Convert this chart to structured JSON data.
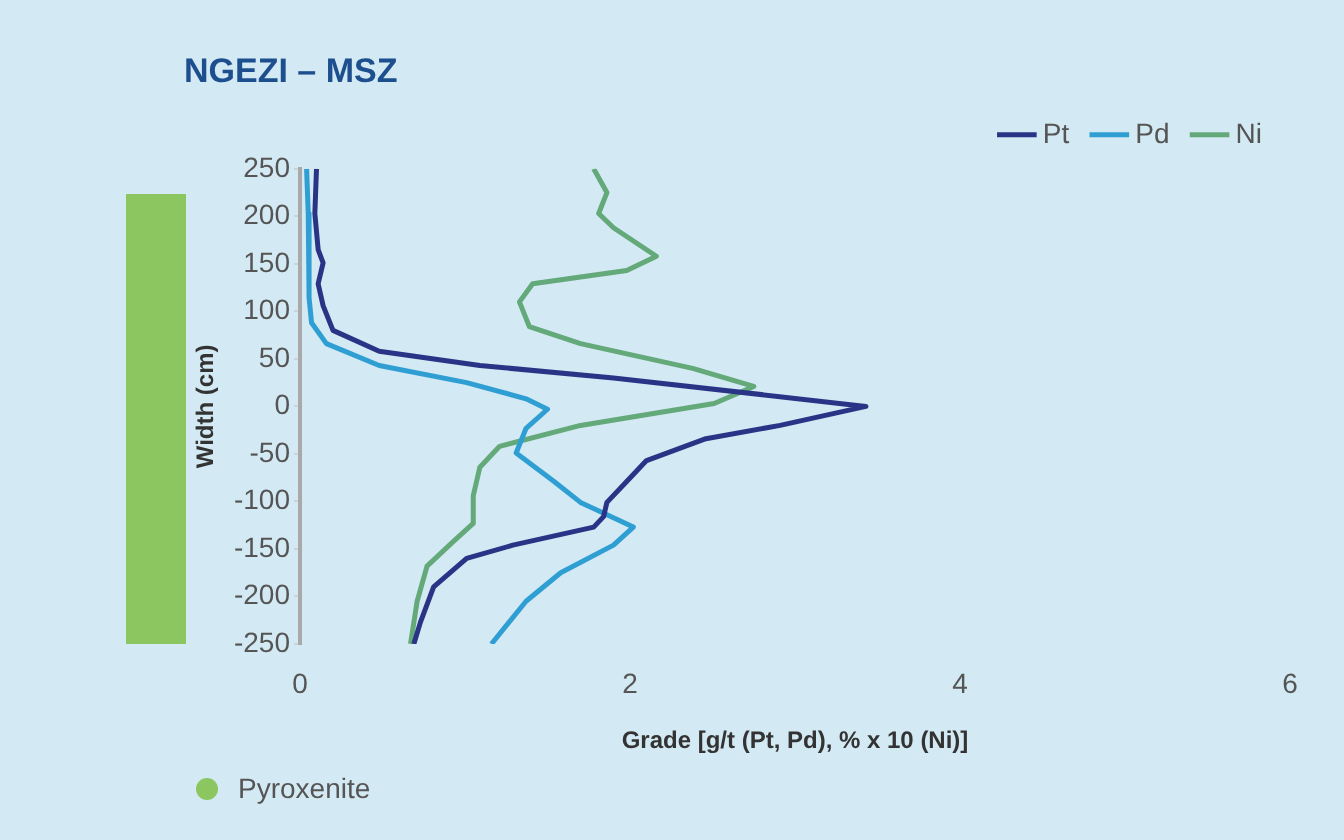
{
  "chart_data": {
    "type": "line",
    "title": "NGEZI – MSZ",
    "xlabel": "Grade [g/t (Pt, Pd), % x 10 (Ni)]",
    "ylabel": "Width (cm)",
    "xlim": [
      0,
      6
    ],
    "xticks": [
      0,
      2,
      4,
      6
    ],
    "ylim": [
      -250,
      250
    ],
    "yticks": [
      250,
      200,
      150,
      100,
      50,
      0,
      -50,
      -100,
      -150,
      -200,
      -250
    ],
    "grid": false,
    "legend": "top right",
    "marker": "none",
    "line_style": "solid",
    "annotations": [
      "Pyroxenite"
    ],
    "series": [
      {
        "name": "Pt",
        "color": "#2a3486",
        "x": [
          0.1,
          0.09,
          0.11,
          0.14,
          0.11,
          0.14,
          0.2,
          0.48,
          1.09,
          1.9,
          3.43,
          2.91,
          2.46,
          2.1,
          1.98,
          1.86,
          1.84,
          1.78,
          1.29,
          1.01,
          0.81,
          0.73,
          0.69
        ],
        "values": [
          250,
          203,
          165,
          151,
          129,
          106,
          80,
          58,
          43,
          30,
          0,
          -20,
          -34,
          -57,
          -79,
          -101,
          -116,
          -127,
          -146,
          -160,
          -190,
          -227,
          -250
        ]
      },
      {
        "name": "Pd",
        "color": "#2f9fd3",
        "x": [
          0.04,
          0.05,
          0.06,
          0.05,
          0.07,
          0.16,
          0.48,
          1.01,
          1.37,
          1.5,
          1.37,
          1.31,
          1.54,
          1.7,
          2.02,
          1.9,
          1.58,
          1.37,
          1.16
        ],
        "values": [
          250,
          203,
          143,
          114,
          88,
          66,
          43,
          25,
          8,
          -3,
          -23,
          -49,
          -79,
          -101,
          -127,
          -146,
          -175,
          -205,
          -250
        ]
      },
      {
        "name": "Ni",
        "color": "#63a97a",
        "x": [
          1.78,
          1.86,
          1.81,
          1.9,
          2.16,
          1.98,
          1.41,
          1.33,
          1.39,
          1.7,
          2.38,
          2.75,
          2.51,
          1.7,
          1.21,
          1.09,
          1.05,
          1.05,
          0.93,
          0.77,
          0.71,
          0.67
        ],
        "values": [
          250,
          225,
          203,
          188,
          158,
          143,
          129,
          110,
          84,
          66,
          40,
          21,
          3,
          -20,
          -42,
          -64,
          -94,
          -123,
          -142,
          -168,
          -205,
          -250
        ]
      }
    ]
  }
}
